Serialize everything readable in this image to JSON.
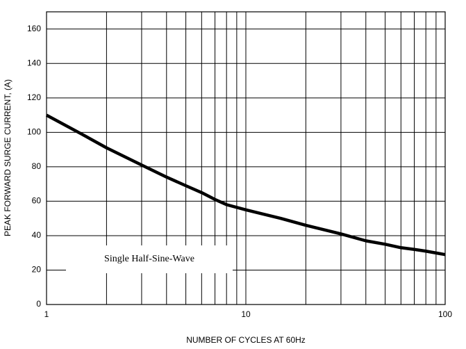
{
  "chart_data": {
    "type": "line",
    "xlabel": "NUMBER OF CYCLES AT 60Hz",
    "ylabel": "PEAK FORWARD SURGE CURRENT, (A)",
    "annotation": "Single Half-Sine-Wave",
    "xscale": "log",
    "x": [
      1,
      1.5,
      2,
      3,
      4,
      5,
      6,
      7,
      8,
      10,
      15,
      20,
      30,
      40,
      50,
      60,
      70,
      80,
      100
    ],
    "series": [
      {
        "name": "Peak forward surge current",
        "color": "#000000",
        "values": [
          110,
          99,
          91,
          81,
          74,
          69,
          65,
          61,
          58,
          55,
          50,
          46,
          41,
          37,
          35,
          33,
          32,
          31,
          29
        ]
      }
    ],
    "xlim": [
      1,
      100
    ],
    "xticks": [
      1,
      10,
      100
    ],
    "xminor": [
      2,
      3,
      4,
      5,
      6,
      7,
      8,
      9,
      20,
      30,
      40,
      50,
      60,
      70,
      80,
      90
    ],
    "ylim": [
      0,
      170
    ],
    "yticks": [
      0,
      20,
      40,
      60,
      80,
      100,
      120,
      140,
      160
    ],
    "grid": true
  }
}
